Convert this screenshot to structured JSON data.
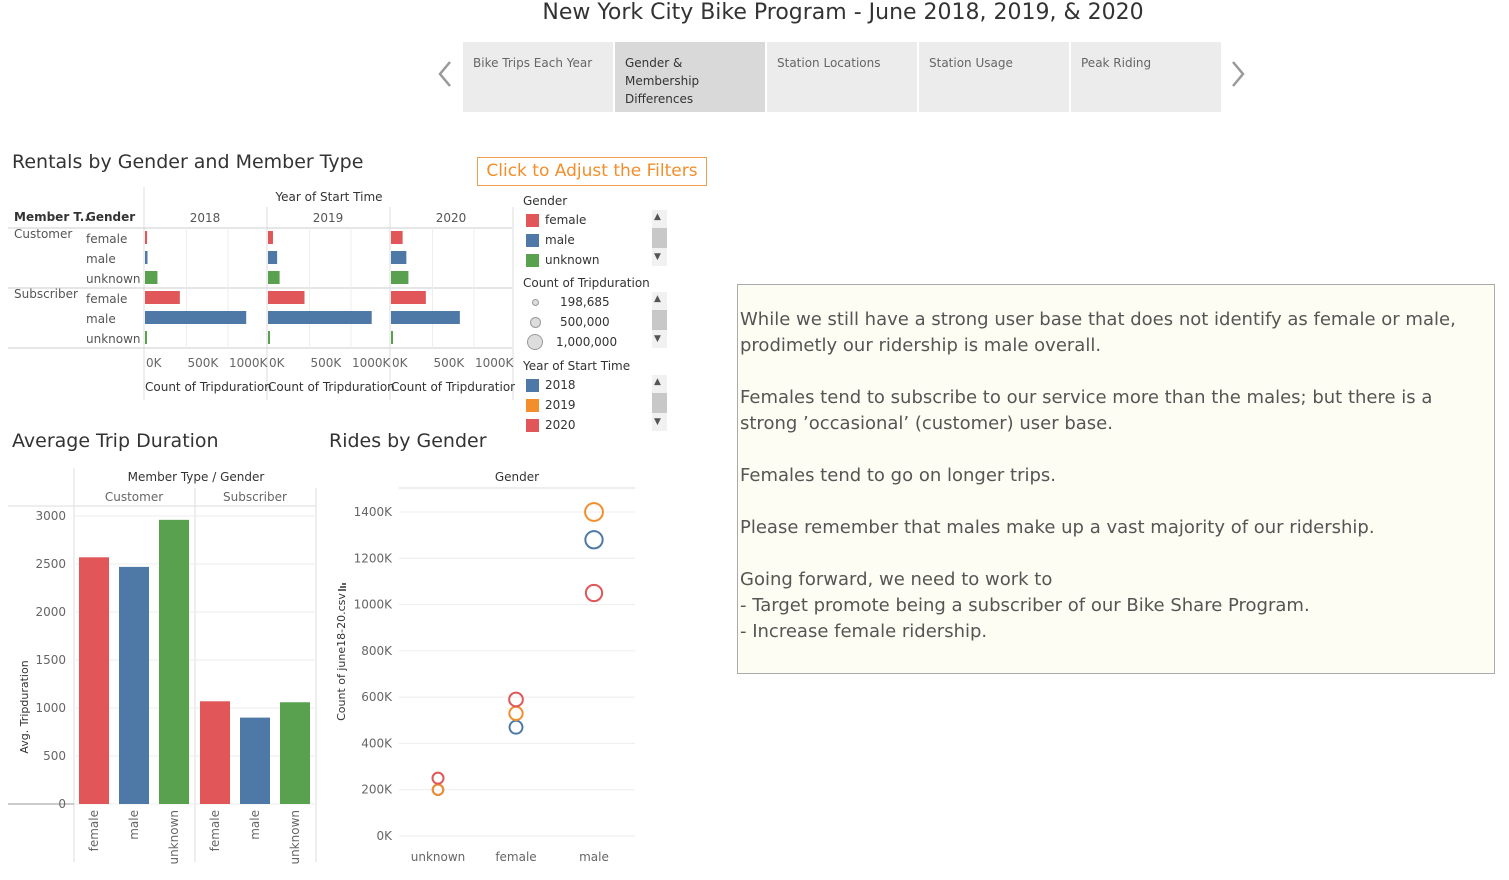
{
  "story": {
    "title": "New York City Bike Program - June 2018, 2019, & 2020",
    "tabs": [
      {
        "label": "Bike Trips Each Year"
      },
      {
        "label": "Gender & Membership Differences"
      },
      {
        "label": "Station Locations"
      },
      {
        "label": "Station Usage"
      },
      {
        "label": "Peak Riding"
      }
    ],
    "active_tab": 1
  },
  "filter_button": "Click to Adjust the Filters",
  "colors": {
    "female": "#e15759",
    "male": "#4e79a7",
    "unknown": "#59a14f",
    "2018": "#4e79a7",
    "2019": "#f28e2b",
    "2020": "#e15759"
  },
  "legends": {
    "gender": {
      "title": "Gender",
      "items": [
        "female",
        "male",
        "unknown"
      ]
    },
    "size": {
      "title": "Count of Tripduration",
      "items": [
        "198,685",
        "500,000",
        "1,000,000"
      ]
    },
    "year": {
      "title": "Year of Start Time",
      "items": [
        "2018",
        "2019",
        "2020"
      ]
    }
  },
  "notes": {
    "p1": "While we still have a strong user base that does not identify as female or male, prodimetly our ridership is male overall.",
    "p2": "Females tend to subscribe to our service more than the males; but there is a strong ’occasional’ (customer) user base.",
    "p3": "Females tend to go on longer trips.",
    "p4": "Please remember that males make up a vast majority of our ridership.",
    "p5": "Going forward, we need to work to",
    "p6": "- Target promote being a subscriber of our Bike Share Program.",
    "p7": "- Increase female ridership."
  },
  "chart_data": [
    {
      "type": "bar",
      "title": "Rentals by Gender and Member Type",
      "column_header": "Year of Start Time",
      "row_headers": [
        "Member T..",
        "Gender"
      ],
      "years": [
        "2018",
        "2019",
        "2020"
      ],
      "rows": [
        {
          "member": "Customer",
          "gender": "female"
        },
        {
          "member": "",
          "gender": "male"
        },
        {
          "member": "",
          "gender": "unknown"
        },
        {
          "member": "Subscriber",
          "gender": "female"
        },
        {
          "member": "",
          "gender": "male"
        },
        {
          "member": "",
          "gender": "unknown"
        }
      ],
      "values": {
        "2018": [
          25000,
          30000,
          150000,
          420000,
          1220000,
          20000
        ],
        "2019": [
          60000,
          110000,
          140000,
          440000,
          1250000,
          20000
        ],
        "2020": [
          140000,
          185000,
          210000,
          420000,
          830000,
          10000
        ]
      },
      "xlabel": "Count of Tripduration",
      "xticks": [
        "0K",
        "500K",
        "1000K"
      ],
      "xlim": [
        0,
        1350000
      ]
    },
    {
      "type": "bar",
      "title": "Average Trip Duration",
      "column_header": "Member Type / Gender",
      "groups": [
        "Customer",
        "Subscriber"
      ],
      "categories": [
        "female",
        "male",
        "unknown"
      ],
      "values": {
        "Customer": [
          2570,
          2470,
          2960
        ],
        "Subscriber": [
          1070,
          900,
          1060
        ]
      },
      "ylabel": "Avg. Tripduration",
      "yticks": [
        "0",
        "500",
        "1000",
        "1500",
        "2000",
        "2500",
        "3000"
      ],
      "ylim": [
        0,
        3000
      ]
    },
    {
      "type": "scatter",
      "title": "Rides by Gender",
      "column_header": "Gender",
      "categories": [
        "unknown",
        "female",
        "male"
      ],
      "series": [
        {
          "name": "2018",
          "values": [
            200000,
            470000,
            1280000
          ]
        },
        {
          "name": "2019",
          "values": [
            200000,
            530000,
            1400000
          ]
        },
        {
          "name": "2020",
          "values": [
            250000,
            590000,
            1050000
          ]
        }
      ],
      "ylabel": "Count of june18-20.csv",
      "yticks": [
        "0K",
        "200K",
        "400K",
        "600K",
        "800K",
        "1000K",
        "1200K",
        "1400K"
      ],
      "ylim": [
        0,
        1400000
      ]
    }
  ]
}
